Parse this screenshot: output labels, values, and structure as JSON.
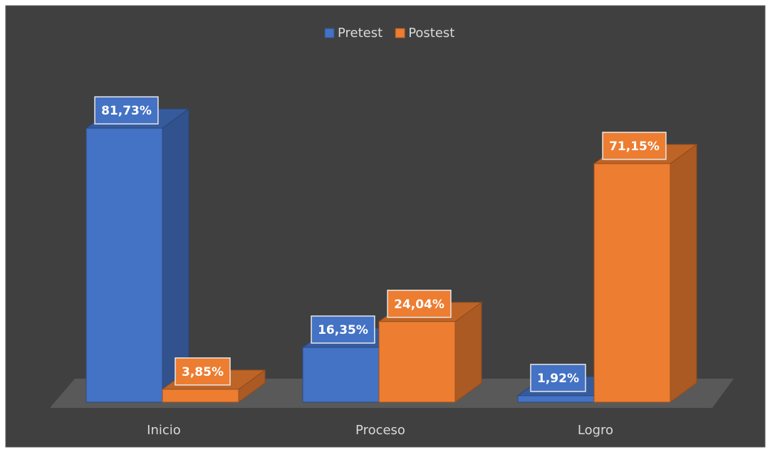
{
  "chart_data": {
    "type": "bar3d",
    "categories": [
      "Inicio",
      "Proceso",
      "Logro"
    ],
    "series": [
      {
        "name": "Pretest",
        "color": "#4472c4",
        "values": [
          81.73,
          16.35,
          1.92
        ],
        "value_labels": [
          "81,73%",
          "16,35%",
          "1,92%"
        ]
      },
      {
        "name": "Postest",
        "color": "#ed7d31",
        "values": [
          3.85,
          24.04,
          71.15
        ],
        "value_labels": [
          "3,85%",
          "24,04%",
          "71,15%"
        ]
      }
    ],
    "legend": "top"
  }
}
